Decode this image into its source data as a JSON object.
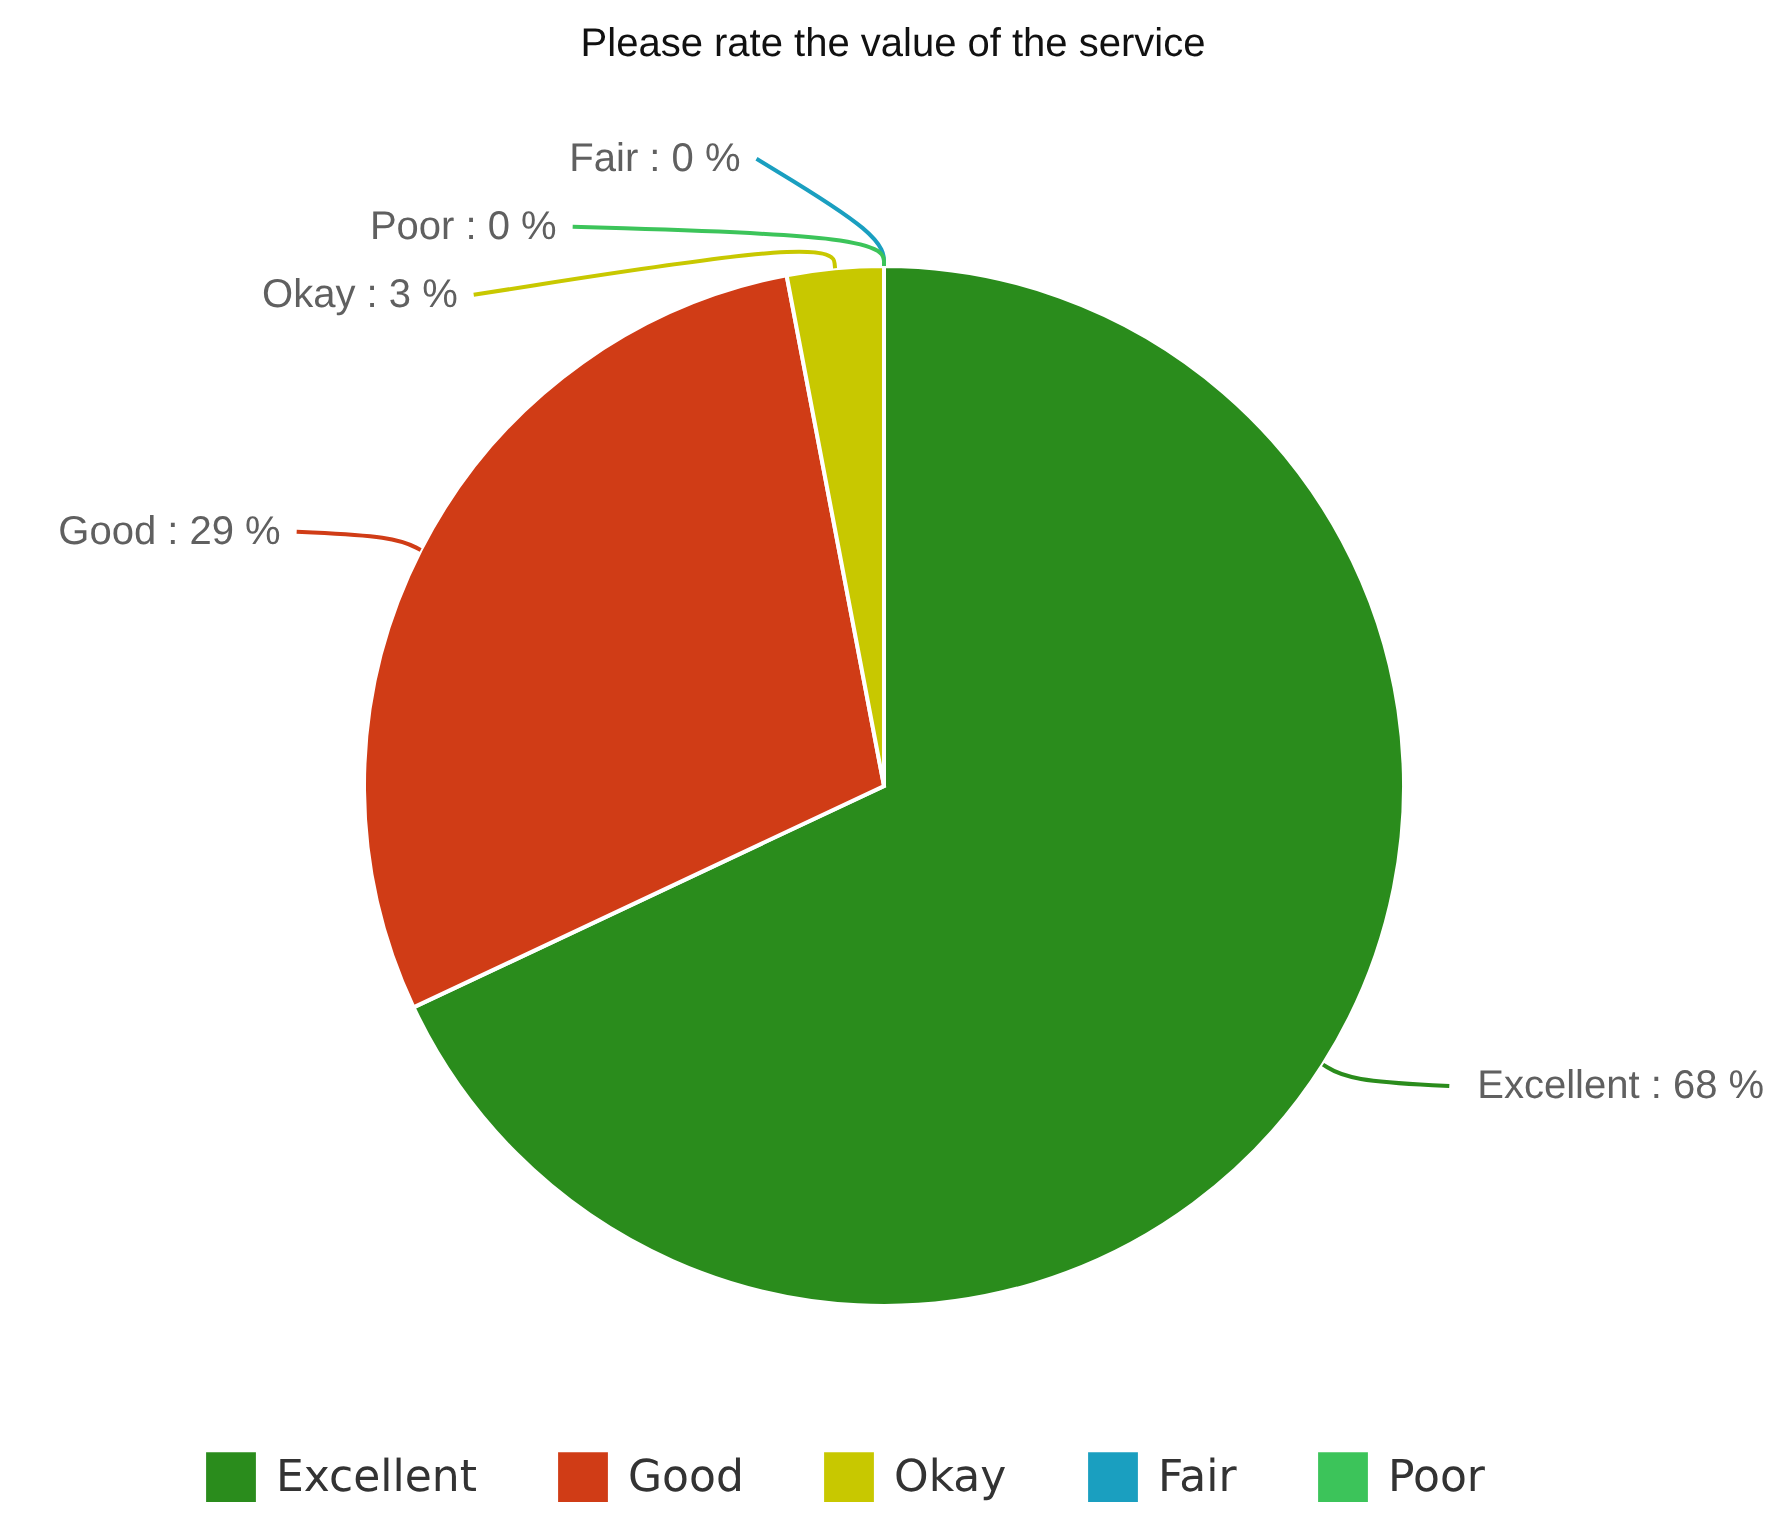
{
  "chart_data": {
    "type": "pie",
    "title": "Please rate the value of the service",
    "categories": [
      "Excellent",
      "Good",
      "Okay",
      "Fair",
      "Poor"
    ],
    "values": [
      68,
      29,
      3,
      0,
      0
    ],
    "colors": [
      "#2a8c1c",
      "#d03c16",
      "#c8c800",
      "#1a9fc0",
      "#3cc45a"
    ],
    "value_labels": [
      "Excellent : 68 %",
      "Good : 29 %",
      "Okay : 3 %",
      "Fair : 0 %",
      "Poor : 0 %"
    ],
    "legend": "bottom"
  }
}
